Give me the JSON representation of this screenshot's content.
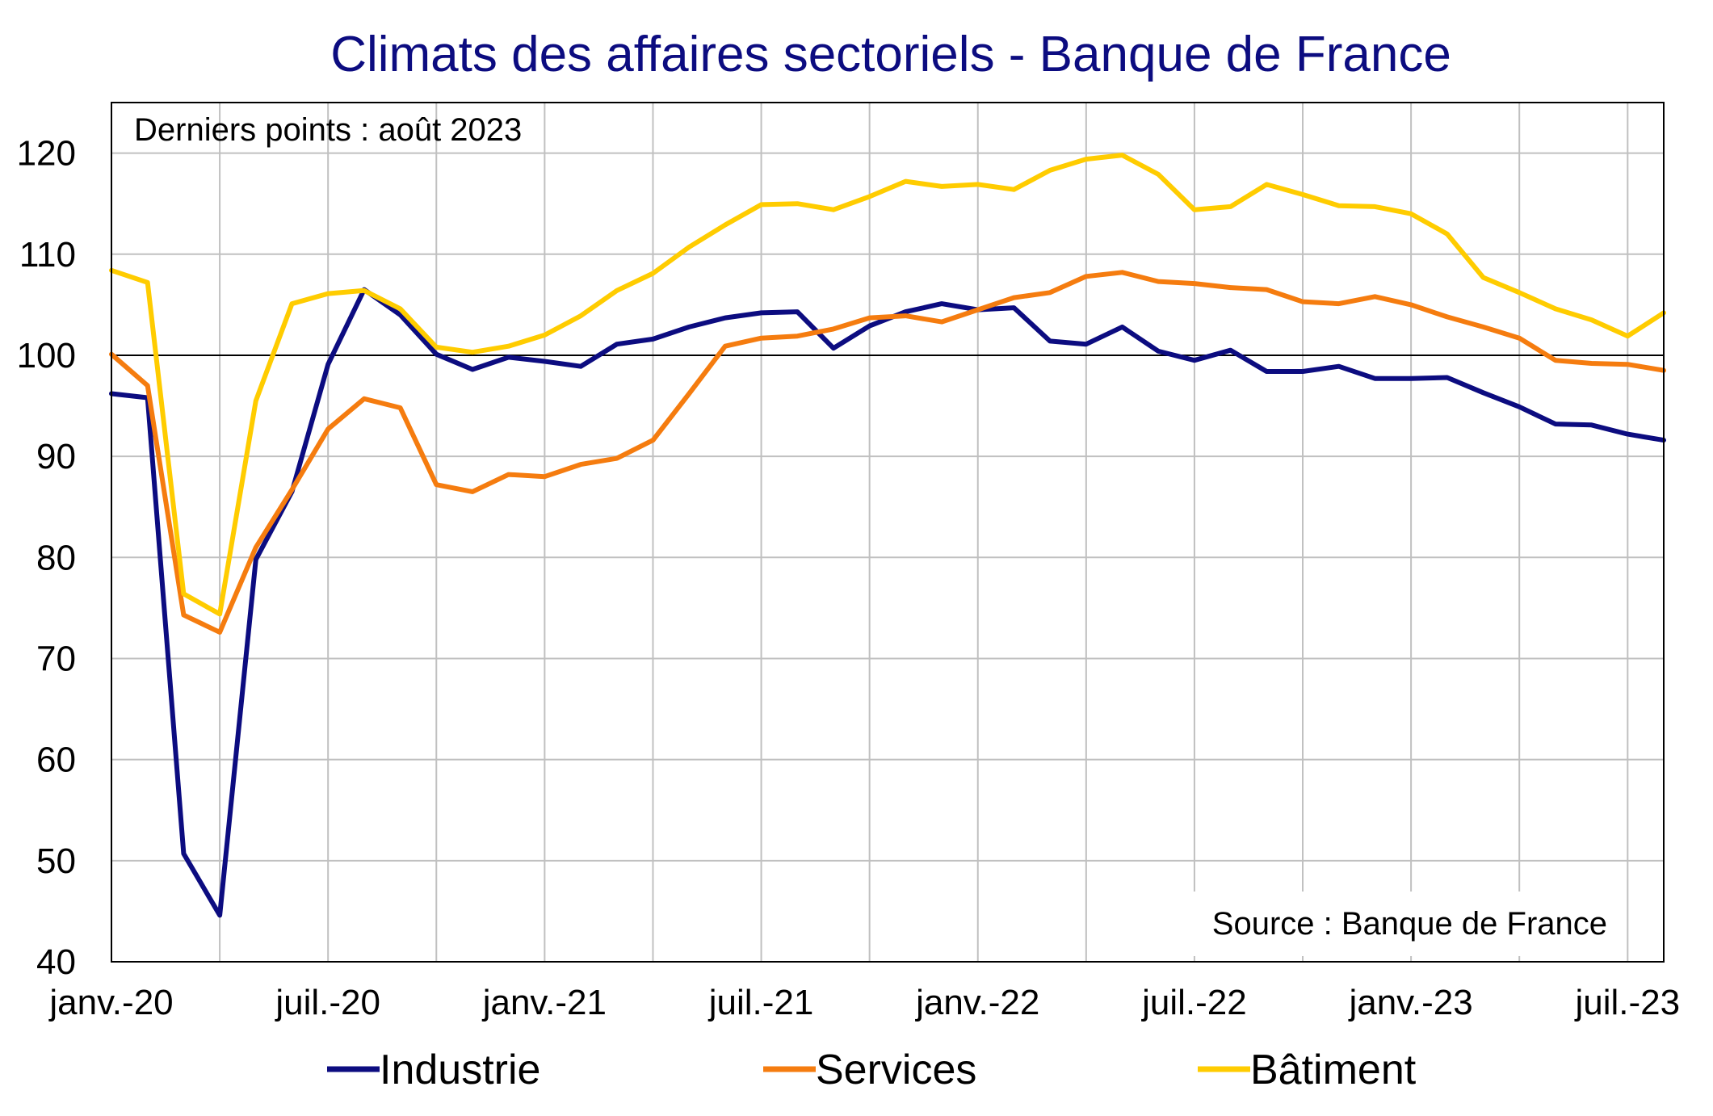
{
  "chart_data": {
    "type": "line",
    "title": "Climats des affaires sectoriels  - Banque de France",
    "annotation_top": "Derniers points : août 2023",
    "annotation_bottom": "Source : Banque de France",
    "xlabel": "",
    "ylabel": "",
    "ylim": [
      40,
      125
    ],
    "yticks": [
      40,
      50,
      60,
      70,
      80,
      90,
      100,
      110,
      120
    ],
    "reference_line": 100,
    "grid": true,
    "legend_position": "bottom",
    "x": [
      "2020-01",
      "2020-02",
      "2020-03",
      "2020-04",
      "2020-05",
      "2020-06",
      "2020-07",
      "2020-08",
      "2020-09",
      "2020-10",
      "2020-11",
      "2020-12",
      "2021-01",
      "2021-02",
      "2021-03",
      "2021-04",
      "2021-05",
      "2021-06",
      "2021-07",
      "2021-08",
      "2021-09",
      "2021-10",
      "2021-11",
      "2021-12",
      "2022-01",
      "2022-02",
      "2022-03",
      "2022-04",
      "2022-05",
      "2022-06",
      "2022-07",
      "2022-08",
      "2022-09",
      "2022-10",
      "2022-11",
      "2022-12",
      "2023-01",
      "2023-02",
      "2023-03",
      "2023-04",
      "2023-05",
      "2023-06",
      "2023-07",
      "2023-08"
    ],
    "xtick_labels": [
      {
        "month": "2020-01",
        "label": "janv.-20"
      },
      {
        "month": "2020-07",
        "label": "juil.-20"
      },
      {
        "month": "2021-01",
        "label": "janv.-21"
      },
      {
        "month": "2021-07",
        "label": "juil.-21"
      },
      {
        "month": "2022-01",
        "label": "janv.-22"
      },
      {
        "month": "2022-07",
        "label": "juil.-22"
      },
      {
        "month": "2023-01",
        "label": "janv.-23"
      },
      {
        "month": "2023-07",
        "label": "juil.-23"
      }
    ],
    "series": [
      {
        "name": "Industrie",
        "color": "#0c0c80",
        "values": [
          96.2,
          95.8,
          50.7,
          44.6,
          79.8,
          86.5,
          99.1,
          106.5,
          104.0,
          100.1,
          98.6,
          99.8,
          99.4,
          98.9,
          101.1,
          101.6,
          102.8,
          103.7,
          104.2,
          104.3,
          100.7,
          102.9,
          104.3,
          105.1,
          104.5,
          104.7,
          101.4,
          101.1,
          102.8,
          100.4,
          99.5,
          100.5,
          98.4,
          98.4,
          98.9,
          97.7,
          97.7,
          97.8,
          96.3,
          94.9,
          93.2,
          93.1,
          92.2,
          91.6
        ]
      },
      {
        "name": "Services",
        "color": "#f57c0f",
        "values": [
          100.1,
          97.0,
          74.3,
          72.6,
          81.0,
          86.7,
          92.7,
          95.7,
          94.8,
          87.2,
          86.5,
          88.2,
          88.0,
          89.2,
          89.8,
          91.6,
          96.2,
          100.9,
          101.7,
          101.9,
          102.6,
          103.7,
          103.9,
          103.3,
          104.5,
          105.7,
          106.2,
          107.8,
          108.2,
          107.3,
          107.1,
          106.7,
          106.5,
          105.3,
          105.1,
          105.8,
          105.0,
          103.8,
          102.8,
          101.7,
          99.5,
          99.2,
          99.1,
          98.5
        ]
      },
      {
        "name": "Bâtiment",
        "color": "#ffcc00",
        "values": [
          108.4,
          107.2,
          76.4,
          74.4,
          95.5,
          105.1,
          106.1,
          106.4,
          104.6,
          100.8,
          100.3,
          100.9,
          102.0,
          103.9,
          106.4,
          108.1,
          110.7,
          112.9,
          114.9,
          115.0,
          114.4,
          115.7,
          117.2,
          116.7,
          116.9,
          116.4,
          118.3,
          119.4,
          119.8,
          117.9,
          114.4,
          114.7,
          116.9,
          115.9,
          114.8,
          114.7,
          114.0,
          112.0,
          107.7,
          106.2,
          104.6,
          103.5,
          101.9,
          104.2
        ]
      }
    ]
  }
}
